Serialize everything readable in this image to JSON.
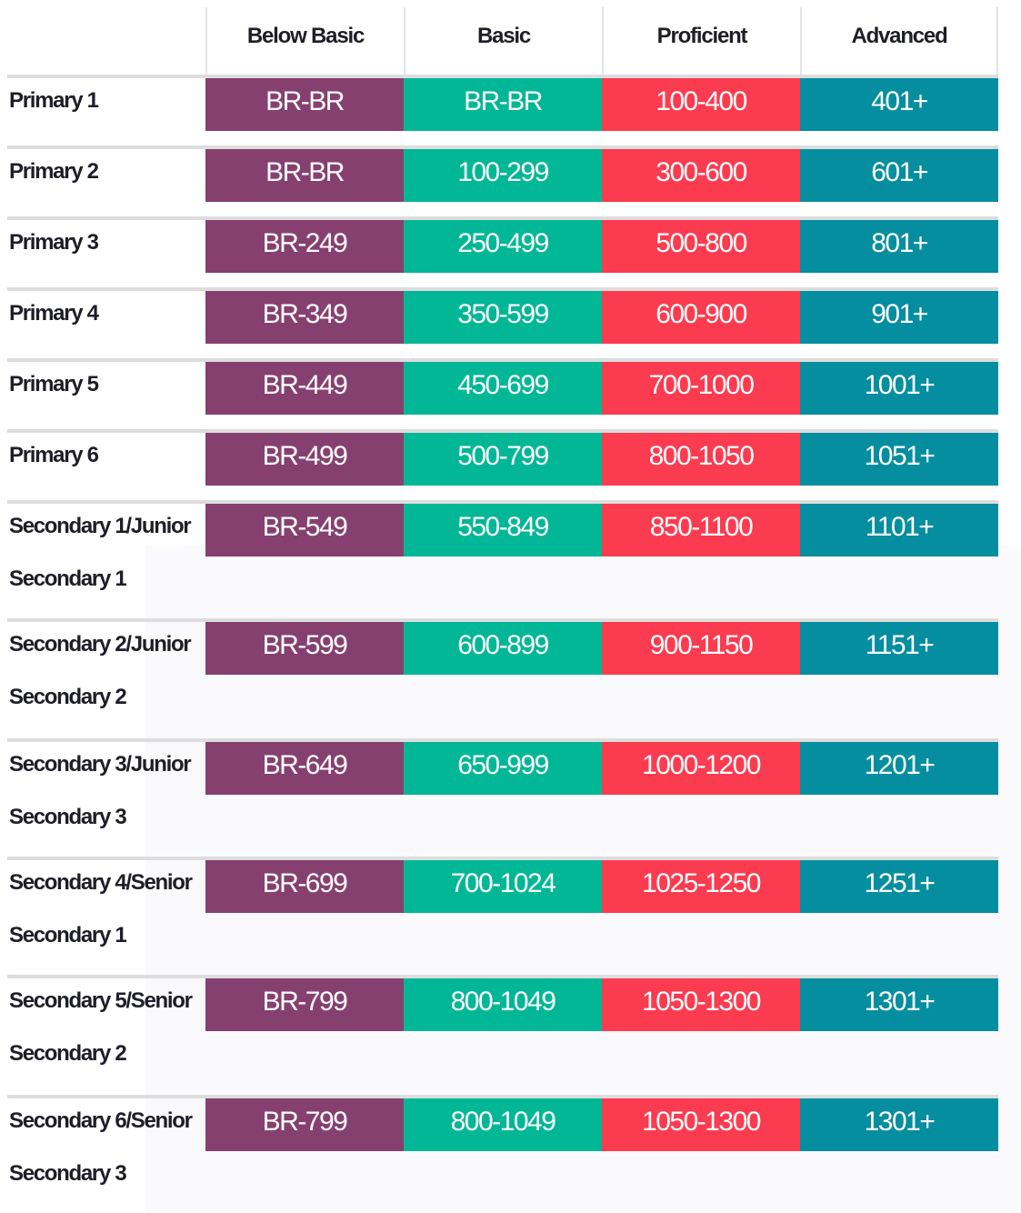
{
  "header": {
    "columns": [
      "Below Basic",
      "Basic",
      "Proficient",
      "Advanced"
    ]
  },
  "rows": [
    {
      "grade": "Primary 1",
      "below": "BR-BR",
      "basic": "BR-BR",
      "proficient": "100-400",
      "advanced": "401+"
    },
    {
      "grade": "Primary 2",
      "below": "BR-BR",
      "basic": "100-299",
      "proficient": "300-600",
      "advanced": "601+"
    },
    {
      "grade": "Primary 3",
      "below": "BR-249",
      "basic": "250-499",
      "proficient": "500-800",
      "advanced": "801+"
    },
    {
      "grade": "Primary 4",
      "below": "BR-349",
      "basic": "350-599",
      "proficient": "600-900",
      "advanced": "901+"
    },
    {
      "grade": "Primary 5",
      "below": "BR-449",
      "basic": "450-699",
      "proficient": "700-1000",
      "advanced": "1001+"
    },
    {
      "grade": "Primary 6",
      "below": "BR-499",
      "basic": "500-799",
      "proficient": "800-1050",
      "advanced": "1051+"
    },
    {
      "grade": "Secondary 1/Junior\nSecondary 1",
      "below": "BR-549",
      "basic": "550-849",
      "proficient": "850-1100",
      "advanced": "1101+"
    },
    {
      "grade": "Secondary 2/Junior\nSecondary 2",
      "below": "BR-599",
      "basic": "600-899",
      "proficient": "900-1150",
      "advanced": "1151+"
    },
    {
      "grade": "Secondary 3/Junior\nSecondary 3",
      "below": "BR-649",
      "basic": "650-999",
      "proficient": "1000-1200",
      "advanced": "1201+"
    },
    {
      "grade": "Secondary 4/Senior\nSecondary 1",
      "below": "BR-699",
      "basic": "700-1024",
      "proficient": "1025-1250",
      "advanced": "1251+"
    },
    {
      "grade": "Secondary 5/Senior\nSecondary 2",
      "below": "BR-799",
      "basic": "800-1049",
      "proficient": "1050-1300",
      "advanced": "1301+"
    },
    {
      "grade": "Secondary 6/Senior\nSecondary 3",
      "below": "BR-799",
      "basic": "800-1049",
      "proficient": "1050-1300",
      "advanced": "1301+"
    }
  ],
  "colors": {
    "below_basic": "#86406f",
    "basic": "#02b795",
    "proficient": "#fb3b4f",
    "advanced": "#058e9f"
  }
}
